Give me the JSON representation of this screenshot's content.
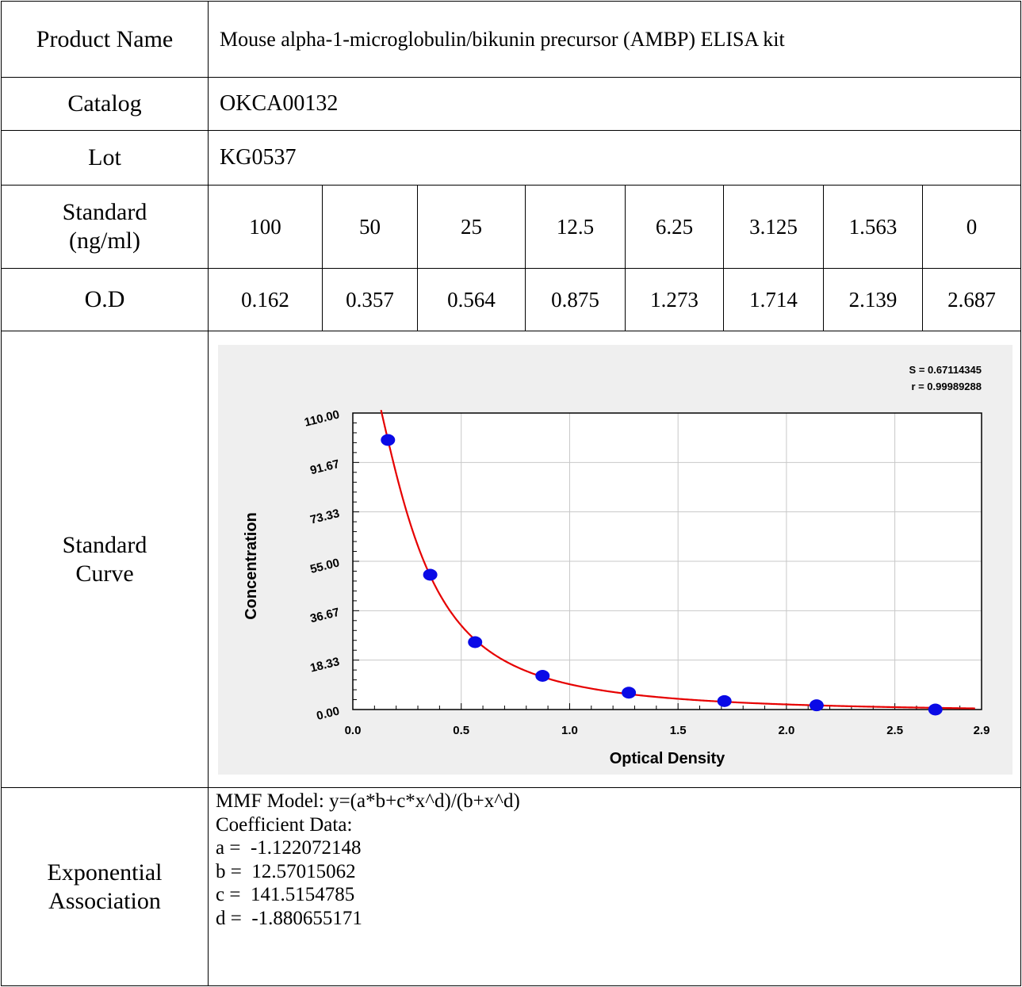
{
  "rows": {
    "product_name": {
      "label": "Product Name",
      "value": "Mouse alpha-1-microglobulin/bikunin precursor (AMBP) ELISA kit"
    },
    "catalog": {
      "label": "Catalog",
      "value": "OKCA00132"
    },
    "lot": {
      "label": "Lot",
      "value": "KG0537"
    },
    "standard": {
      "label_line1": "Standard",
      "label_line2": "(ng/ml)",
      "values": [
        "100",
        "50",
        "25",
        "12.5",
        "6.25",
        "3.125",
        "1.563",
        "0"
      ]
    },
    "od": {
      "label": "O.D",
      "values": [
        "0.162",
        "0.357",
        "0.564",
        "0.875",
        "1.273",
        "1.714",
        "2.139",
        "2.687"
      ]
    },
    "standard_curve": {
      "label_line1": "Standard",
      "label_line2": "Curve"
    },
    "exponential": {
      "label_line1": "Exponential",
      "label_line2": "Association",
      "lines": [
        "MMF Model: y=(a*b+c*x^d)/(b+x^d)",
        "Coefficient Data:",
        "a =  -1.122072148",
        "b =  12.57015062",
        "c =  141.5154785",
        "d =  -1.880655171"
      ]
    }
  },
  "chart_data": {
    "type": "scatter",
    "xlabel": "Optical Density",
    "ylabel": "Concentration",
    "xlim": [
      0,
      2.9
    ],
    "ylim": [
      0,
      110
    ],
    "x_ticks": [
      "0.0",
      "0.5",
      "1.0",
      "1.5",
      "2.0",
      "2.5",
      "2.9"
    ],
    "x_tick_values": [
      0,
      0.5,
      1.0,
      1.5,
      2.0,
      2.5,
      2.9
    ],
    "y_ticks": [
      "0.00",
      "18.33",
      "36.67",
      "55.00",
      "73.33",
      "91.67",
      "110.00"
    ],
    "y_tick_values": [
      0,
      18.33,
      36.67,
      55.0,
      73.33,
      91.67,
      110.0
    ],
    "grid": true,
    "annotations": [
      "S = 0.67114345",
      "r = 0.99989288"
    ],
    "points": {
      "x": [
        0.162,
        0.357,
        0.564,
        0.875,
        1.273,
        1.714,
        2.139,
        2.687
      ],
      "y": [
        100,
        50,
        25,
        12.5,
        6.25,
        3.125,
        1.563,
        0
      ]
    },
    "fit": {
      "a": -1.122072148,
      "b": 12.57015062,
      "c": 141.5154785,
      "d": -1.880655171
    },
    "colors": {
      "points": "#0a0ae6",
      "curve": "#e60000",
      "grid": "#c8c8c8",
      "background": "#efefef",
      "plot_area": "#ffffff"
    }
  }
}
